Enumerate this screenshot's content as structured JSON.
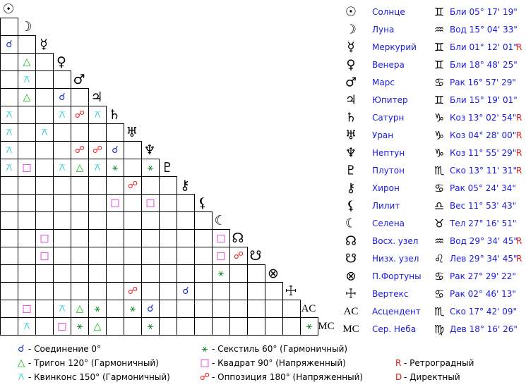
{
  "bodies": [
    {
      "symbol": "☉",
      "name": "Солнце",
      "sign": "♊",
      "position": "Бли 05° 17' 19\""
    },
    {
      "symbol": "☽",
      "name": "Луна",
      "sign": "♒",
      "position": "Вод 15° 04' 33\""
    },
    {
      "symbol": "☿",
      "name": "Меркурий",
      "sign": "♊",
      "position": "Бли 01° 12' 01\"",
      "retrograde": "R"
    },
    {
      "symbol": "♀",
      "name": "Венера",
      "sign": "♊",
      "position": "Бли 18° 48' 25\""
    },
    {
      "symbol": "♂",
      "name": "Марс",
      "sign": "♋",
      "position": "Рак 16° 57' 29\""
    },
    {
      "symbol": "♃",
      "name": "Юпитер",
      "sign": "♊",
      "position": "Бли 15° 19' 01\""
    },
    {
      "symbol": "♄",
      "name": "Сатурн",
      "sign": "♑",
      "position": "Коз 13° 02' 54\"",
      "retrograde": "R"
    },
    {
      "symbol": "♅",
      "name": "Уран",
      "sign": "♑",
      "position": "Коз 04° 28' 00\"",
      "retrograde": "R"
    },
    {
      "symbol": "♆",
      "name": "Нептун",
      "sign": "♑",
      "position": "Коз 11° 55' 29\"",
      "retrograde": "R"
    },
    {
      "symbol": "♇",
      "name": "Плутон",
      "sign": "♏",
      "position": "Ско 13° 11' 31\"",
      "retrograde": "R"
    },
    {
      "symbol": "⚷",
      "name": "Хирон",
      "sign": "♋",
      "position": "Рак 05° 24' 34\""
    },
    {
      "symbol": "⚸",
      "name": "Лилит",
      "sign": "♎",
      "position": "Вес 11° 53' 43\""
    },
    {
      "symbol": "☾",
      "name": "Селена",
      "sign": "♉",
      "position": "Тел 27° 16' 51\""
    },
    {
      "symbol": "☊",
      "name": "Восх. узел",
      "sign": "♒",
      "position": "Вод 29° 34' 45\"",
      "retrograde": "R"
    },
    {
      "symbol": "☋",
      "name": "Низх. узел",
      "sign": "♌",
      "position": "Лев 29° 34' 45\"",
      "retrograde": "R"
    },
    {
      "symbol": "⊗",
      "name": "П.Фортуны",
      "sign": "♋",
      "position": "Рак 27° 29' 22\""
    },
    {
      "symbol": "☩",
      "name": "Вертекс",
      "sign": "♋",
      "position": "Рак 02° 46' 13\""
    },
    {
      "symbol": "AC",
      "name": "Асцендент",
      "sign": "♏",
      "position": "Ско 17° 42' 09\""
    },
    {
      "symbol": "MC",
      "name": "Сер. Неба",
      "sign": "♍",
      "position": "Дев 18° 16' 26\""
    }
  ],
  "aspect_grid": [
    [],
    [
      null
    ],
    [
      "☌",
      null
    ],
    [
      null,
      "△",
      null
    ],
    [
      null,
      "⚻",
      null,
      null
    ],
    [
      null,
      "△",
      null,
      "☌",
      null
    ],
    [
      "⚻",
      null,
      null,
      "⚻",
      "☍",
      "⚻"
    ],
    [
      "⚻",
      null,
      "⚻",
      null,
      null,
      null,
      null
    ],
    [
      "⚻",
      null,
      null,
      null,
      "☍",
      "☍",
      "☌",
      null
    ],
    [
      "⚻",
      "□",
      null,
      "⚻",
      "△",
      "⚻",
      "⚹",
      null,
      "⚹"
    ],
    [
      null,
      null,
      null,
      null,
      null,
      null,
      null,
      "☍",
      null,
      null
    ],
    [
      null,
      null,
      null,
      null,
      null,
      null,
      "□",
      null,
      "□",
      null,
      null
    ],
    [
      null,
      null,
      null,
      null,
      null,
      null,
      null,
      null,
      null,
      null,
      null,
      null
    ],
    [
      null,
      null,
      "□",
      null,
      null,
      null,
      null,
      null,
      null,
      null,
      null,
      null,
      "□"
    ],
    [
      null,
      null,
      "□",
      null,
      null,
      null,
      null,
      null,
      null,
      null,
      null,
      null,
      "□",
      "☍"
    ],
    [
      null,
      null,
      null,
      null,
      null,
      null,
      null,
      null,
      null,
      null,
      null,
      null,
      "⚹",
      null,
      null
    ],
    [
      null,
      null,
      null,
      null,
      null,
      null,
      null,
      "☍",
      null,
      null,
      "☌",
      null,
      null,
      null,
      null,
      null
    ],
    [
      null,
      "□",
      null,
      "⚻",
      "△",
      "⚹",
      null,
      "⚹",
      "☌",
      null,
      null,
      null,
      null,
      null,
      null,
      null,
      null
    ],
    [
      null,
      "⚻",
      null,
      "□",
      "⚹",
      "△",
      null,
      null,
      "⚹",
      null,
      null,
      null,
      null,
      null,
      null,
      null,
      null,
      "⚹"
    ]
  ],
  "aspects_legend": [
    {
      "symbol": "☌",
      "color": "#1a2fc8",
      "label": "- Соединение 0°"
    },
    {
      "symbol": "△",
      "color": "#12b812",
      "label": "- Тригон 120° (Гармоничный)"
    },
    {
      "symbol": "⚻",
      "color": "#14c8d0",
      "label": "- Квинконс 150° (Гармоничный)"
    },
    {
      "symbol": "⚹",
      "color": "#1a8a2a",
      "label": "- Секстиль 60° (Гармоничный)"
    },
    {
      "symbol": "□",
      "color": "#e01ad0",
      "label": "- Квадрат 90° (Напряженный)"
    },
    {
      "symbol": "☍",
      "color": "#e82020",
      "label": "- Оппозиция 180° (Напряженный)"
    }
  ],
  "motion_legend": [
    {
      "symbol": "R",
      "label": "- Ретроградный"
    },
    {
      "symbol": "D",
      "label": "- Директный"
    }
  ]
}
